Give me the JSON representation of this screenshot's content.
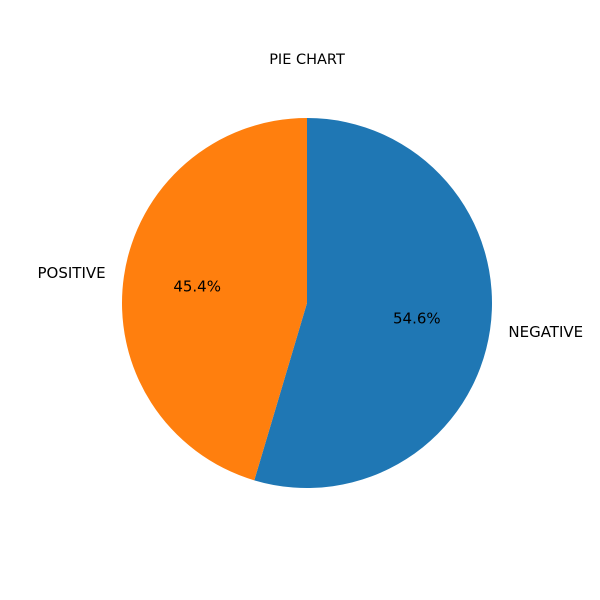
{
  "chart_data": {
    "type": "pie",
    "title": "PIE CHART",
    "categories": [
      "NEGATIVE",
      "POSITIVE"
    ],
    "values": [
      54.6,
      45.4
    ],
    "value_labels": [
      "54.6%",
      "45.4%"
    ],
    "colors": [
      "#1f77b4",
      "#ff7f0e"
    ],
    "legend": "none"
  }
}
